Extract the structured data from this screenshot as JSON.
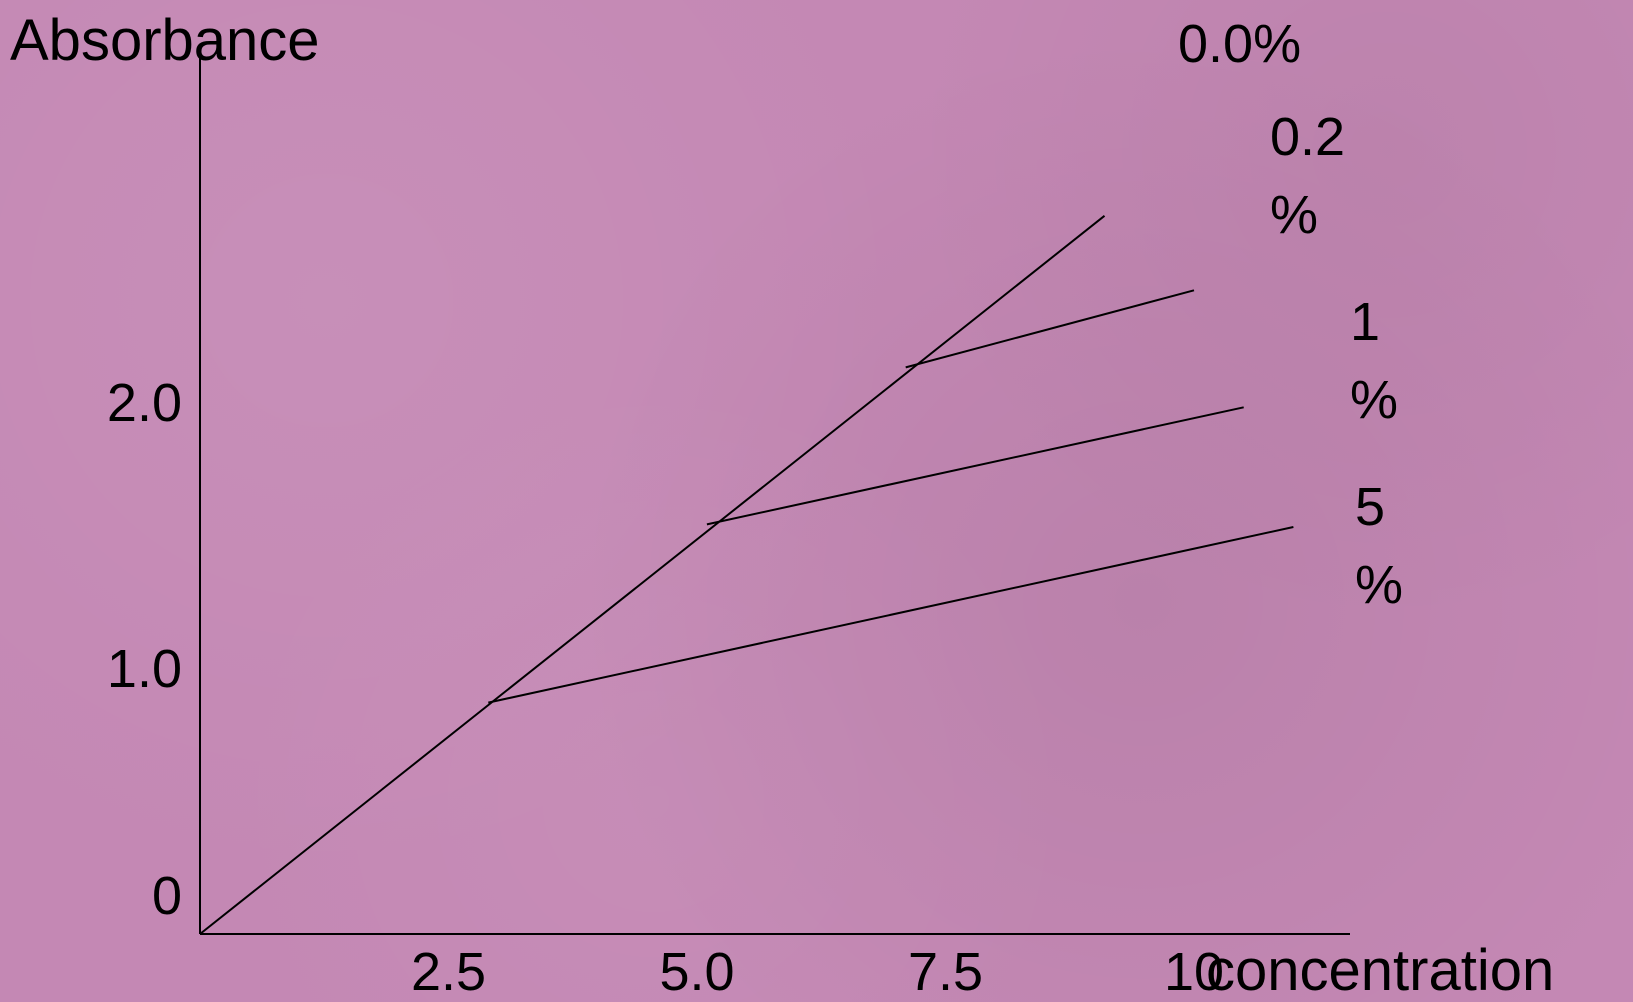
{
  "chart_data": {
    "type": "line",
    "title": "",
    "xlabel": "concentration",
    "ylabel": "Absorbance",
    "xlim": [
      0,
      11.2
    ],
    "ylim": [
      0,
      2.7
    ],
    "x_ticks": [
      {
        "value": 2.5,
        "label": "2.5"
      },
      {
        "value": 5.0,
        "label": "5.0"
      },
      {
        "value": 7.5,
        "label": "7.5"
      },
      {
        "value": 10,
        "label": "10"
      }
    ],
    "y_ticks": [
      {
        "value": 2.0,
        "label": "2.0"
      },
      {
        "value": 1.0,
        "label": "1.0"
      },
      {
        "value": 0,
        "label": "0"
      }
    ],
    "grid": false,
    "legend": "labels at line ends, right",
    "series": [
      {
        "name": "0.0%",
        "label_lines": [
          "0.0%"
        ],
        "x": [
          0,
          9.1
        ],
        "y": [
          0,
          2.7
        ]
      },
      {
        "name": "0.2 %",
        "label_lines": [
          "0.2",
          "%"
        ],
        "x": [
          7.1,
          10.0
        ],
        "y": [
          2.13,
          2.42
        ]
      },
      {
        "name": "1 %",
        "label_lines": [
          "1",
          "%"
        ],
        "x": [
          5.1,
          10.5
        ],
        "y": [
          1.54,
          1.98
        ]
      },
      {
        "name": "5 %",
        "label_lines": [
          "5",
          "%"
        ],
        "x": [
          2.9,
          11.0
        ],
        "y": [
          0.87,
          1.53
        ]
      }
    ],
    "colors": {
      "background": "#c488b4",
      "line": "#000000"
    }
  }
}
